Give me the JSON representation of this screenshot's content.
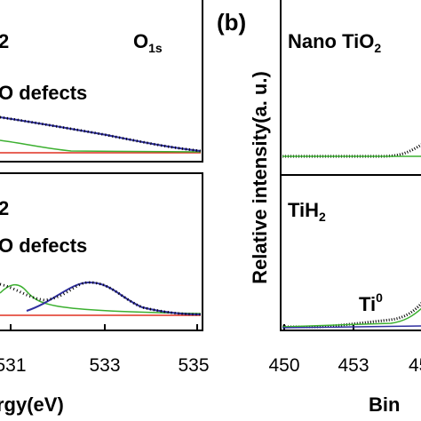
{
  "figure": {
    "left": {
      "top_label_sub": "2",
      "top_peak": "O",
      "top_peak_sub": "1s",
      "top_defects": "O defects",
      "bottom_label_sub": "2",
      "bottom_defects": "O defects",
      "xticks": [
        "531",
        "533",
        "535"
      ],
      "xlabel": "rgy(eV)"
    },
    "right": {
      "panel_letter": "(b)",
      "top_label": "Nano TiO",
      "top_label_sub": "2",
      "bottom_label": "TiH",
      "bottom_label_sub": "2",
      "peak": "Ti",
      "peak_sup": "0",
      "ylabel": "Relative intensity(a. u.)",
      "xticks": [
        "450",
        "453",
        "45"
      ],
      "xlabel": "Bin"
    }
  }
}
